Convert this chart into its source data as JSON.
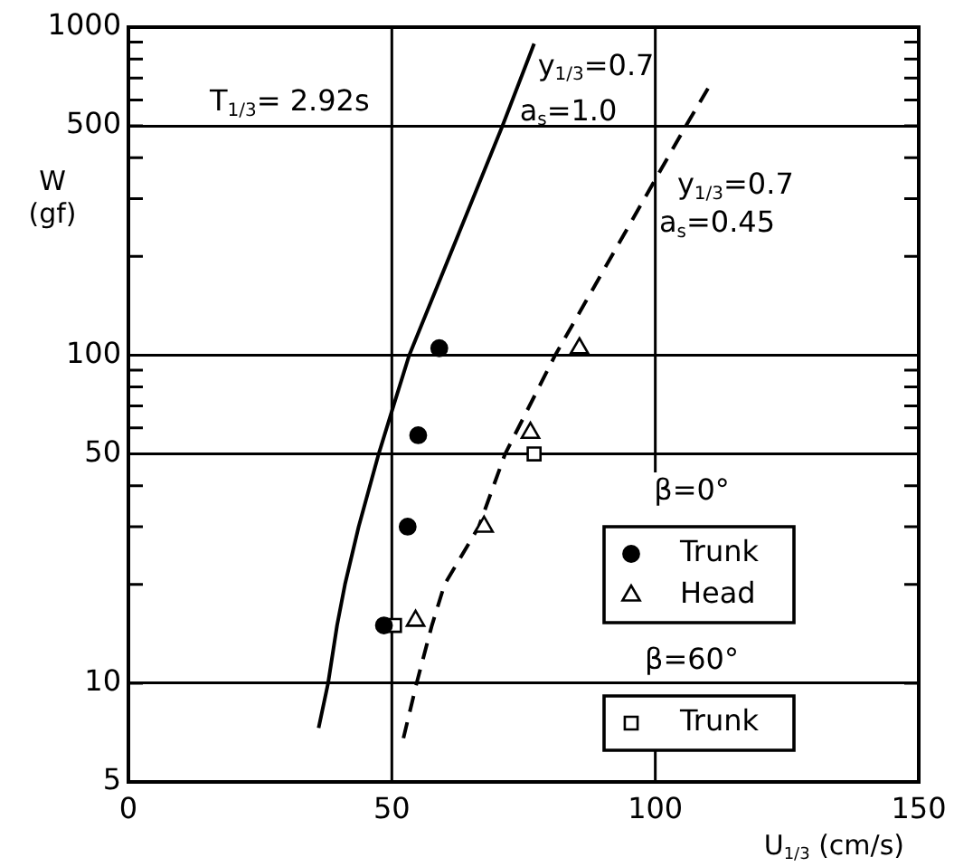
{
  "chart_data": {
    "type": "scatter",
    "xlabel": "U$_{1/3}$ (cm/s)",
    "ylabel": "W\n(gf)",
    "annotations": [
      "T$_{1/3}$= 2.92s",
      "β=0°",
      "β=60°"
    ],
    "xlim": [
      0,
      150
    ],
    "ylim": [
      5,
      1000
    ],
    "xticks": [
      0,
      50,
      100,
      150
    ],
    "yticks": [
      5,
      10,
      {
        "value": 20,
        "label": null
      },
      {
        "value": 30,
        "label": null
      },
      {
        "value": 40,
        "label": null
      },
      50,
      {
        "value": 60,
        "label": null
      },
      {
        "value": 70,
        "label": null
      },
      {
        "value": 80,
        "label": null
      },
      {
        "value": 90,
        "label": null
      },
      100,
      {
        "value": 200,
        "label": null
      },
      {
        "value": 300,
        "label": null
      },
      {
        "value": 400,
        "label": null
      },
      500,
      {
        "value": 600,
        "label": null
      },
      {
        "value": 700,
        "label": null
      },
      {
        "value": 800,
        "label": null
      },
      {
        "value": 900,
        "label": null
      },
      1000
    ],
    "log": "y",
    "grid": true,
    "legend": "bottom right",
    "series": [
      {
        "name": "y$_{1/3}$=0.7\na$_{s}$=1.0",
        "type": "line",
        "color": "#000000",
        "line_style": "solid",
        "marker": "none",
        "x": [
          36.1,
          37.9,
          39.6,
          41.1,
          43.7,
          47.5,
          50.3,
          53.3,
          71,
          77
        ],
        "values": [
          7.3,
          10,
          15,
          20,
          30,
          50,
          70,
          100,
          500,
          890
        ]
      },
      {
        "name": "y$_{1/3}$=0.7\na$_{s}$=0.45",
        "type": "line",
        "color": "#000000",
        "line_style": "dashed",
        "marker": "none",
        "x": [
          52.2,
          54.7,
          57.6,
          60,
          66.5,
          71.5,
          81,
          105.8,
          110
        ],
        "values": [
          6.8,
          10,
          15,
          20,
          30,
          50,
          100,
          500,
          650
        ]
      },
      {
        "name": "Trunk",
        "type": "scatter",
        "color": "#000000",
        "marker": "circle",
        "x": [
          59,
          55,
          53,
          48.5
        ],
        "values": [
          105,
          57,
          30,
          15
        ]
      },
      {
        "name": "Head",
        "type": "scatter",
        "color": "#000000",
        "marker": "triangle",
        "x": [
          54.5,
          67.5,
          76.3,
          85.6
        ],
        "values": [
          15.5,
          30,
          58,
          105
        ]
      },
      {
        "name": "Trunk",
        "type": "scatter",
        "color": "#000000",
        "marker": "square",
        "x": [
          50.5,
          77
        ],
        "values": [
          15,
          50
        ]
      }
    ]
  }
}
